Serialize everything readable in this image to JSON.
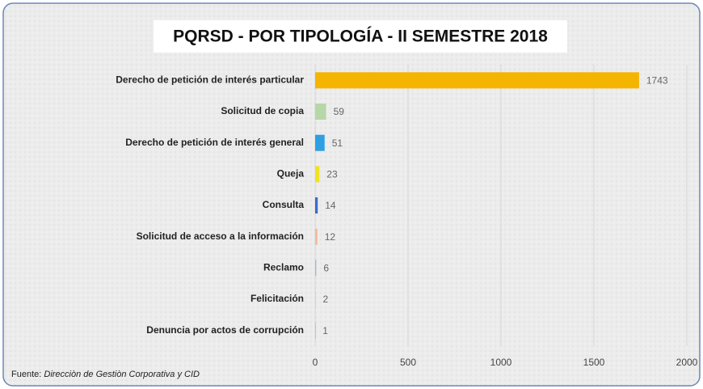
{
  "chart_data": {
    "type": "bar",
    "orientation": "horizontal",
    "title": "PQRSD - POR TIPOLOGÍA - II SEMESTRE 2018",
    "categories": [
      "Derecho de petición de interés particular",
      "Solicitud de copia",
      "Derecho de petición de interés general",
      "Queja",
      "Consulta",
      "Solicitud de acceso a la información",
      "Reclamo",
      "Felicitación",
      "Denuncia por actos de corrupción"
    ],
    "values": [
      1743,
      59,
      51,
      23,
      14,
      12,
      6,
      2,
      1
    ],
    "colors": [
      "#f5b400",
      "#b6d7a8",
      "#2f9fe3",
      "#f2e21e",
      "#3b6cc8",
      "#f2b99b",
      "#a8b6df",
      "#c9c9c9",
      "#9fa9bf"
    ],
    "xlim": [
      0,
      2000
    ],
    "xticks": [
      0,
      500,
      1000,
      1500,
      2000
    ],
    "grid": true,
    "source_label": "Fuente:",
    "source": "Direcciòn de Gestiòn Corporativa y CID"
  }
}
